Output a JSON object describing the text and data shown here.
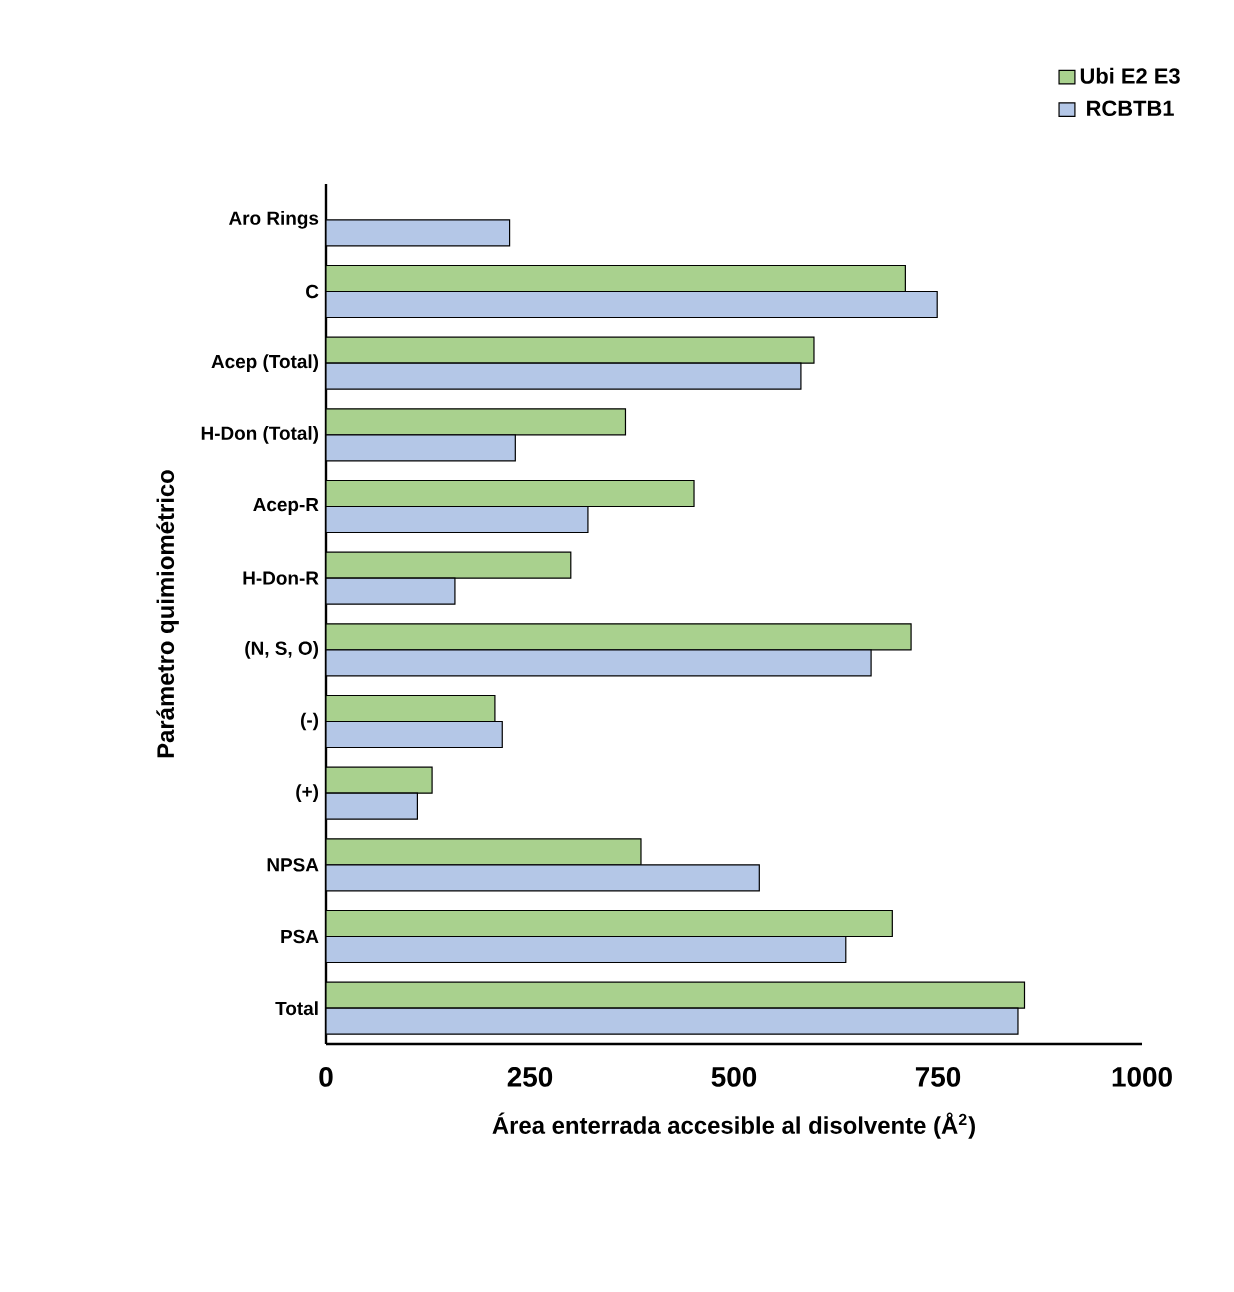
{
  "chart_data": {
    "type": "bar",
    "orientation": "horizontal",
    "xlabel": "Área enterrada accesible al disolvente (Å$^{2}$)",
    "ylabel": "Parámetro quimiométrico",
    "categories": [
      "Aro Rings",
      "C",
      "Acep (Total)",
      "H-Don (Total)",
      "Acep-R",
      "H-Don-R",
      "(N, S, O)",
      "(-)",
      "(+)",
      "NPSA",
      "PSA",
      "Total"
    ],
    "series": [
      {
        "name": "Ubi E2 E3",
        "color": "#a9d18e",
        "values": [
          null,
          710,
          598,
          367,
          451,
          300,
          717,
          207,
          130,
          386,
          694,
          856
        ]
      },
      {
        "name": "RCBTB1",
        "color": "#b4c7e7",
        "values": [
          225,
          749,
          582,
          232,
          321,
          158,
          668,
          216,
          112,
          531,
          637,
          848
        ]
      }
    ],
    "xlim": [
      0,
      1000
    ],
    "xticks": [
      0,
      250,
      500,
      750,
      1000
    ],
    "legend": "top right",
    "grid": false
  }
}
